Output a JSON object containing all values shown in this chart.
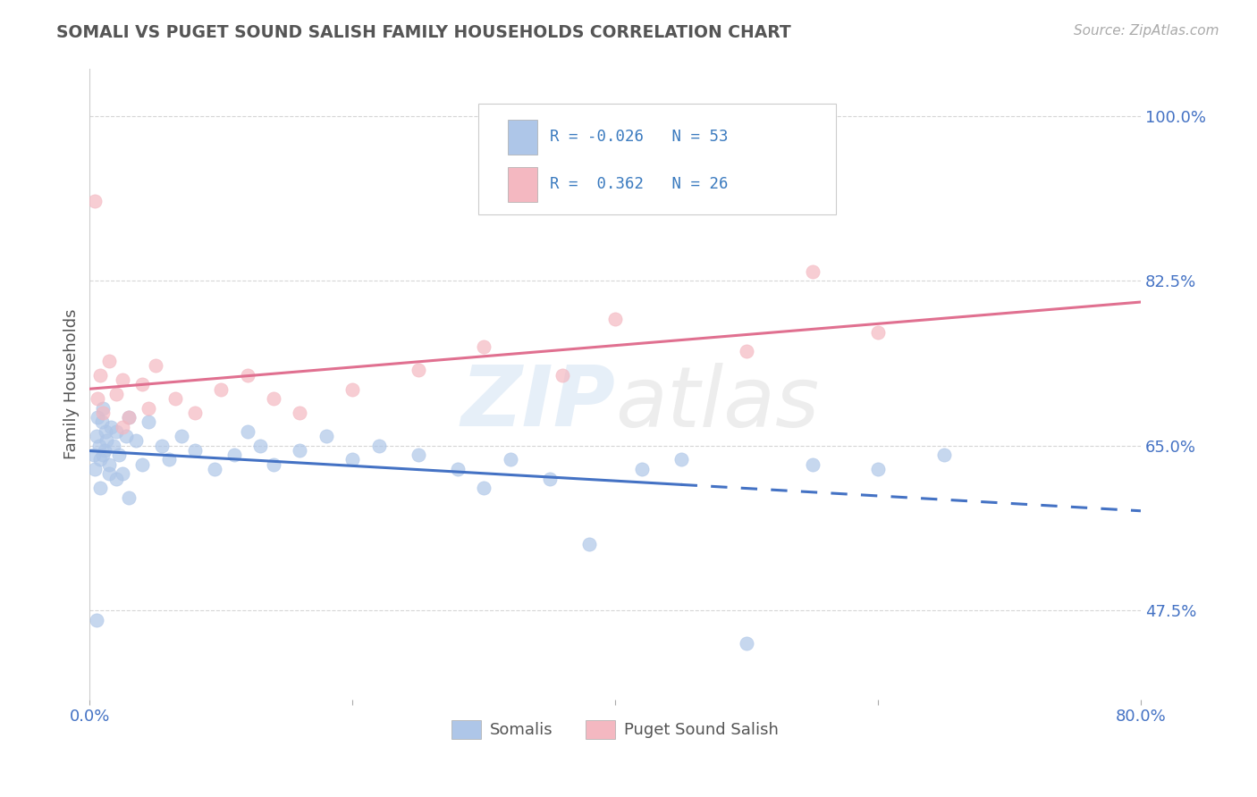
{
  "title": "SOMALI VS PUGET SOUND SALISH FAMILY HOUSEHOLDS CORRELATION CHART",
  "source_text": "Source: ZipAtlas.com",
  "ylabel": "Family Households",
  "xlim": [
    0.0,
    80.0
  ],
  "ylim": [
    38.0,
    105.0
  ],
  "yticks": [
    47.5,
    65.0,
    82.5,
    100.0
  ],
  "ytick_labels": [
    "47.5%",
    "65.0%",
    "82.5%",
    "100.0%"
  ],
  "xticks": [
    0.0,
    20.0,
    40.0,
    60.0,
    80.0
  ],
  "xtick_labels": [
    "0.0%",
    "",
    "",
    "",
    "80.0%"
  ],
  "legend_bottom": [
    "Somalis",
    "Puget Sound Salish"
  ],
  "watermark": "ZIPatlas",
  "background_color": "#ffffff",
  "grid_color": "#cccccc",
  "title_color": "#555555",
  "axis_label_color": "#555555",
  "tick_color": "#4472c4",
  "somali_color": "#aec6e8",
  "salish_color": "#f4b8c1",
  "blue_line_color": "#4472c4",
  "pink_line_color": "#e07090",
  "legend_r1": "R = -0.026   N = 53",
  "legend_r2": "R =  0.362   N = 26",
  "somali_x": [
    0.3,
    0.4,
    0.5,
    0.6,
    0.7,
    0.8,
    0.9,
    1.0,
    1.1,
    1.2,
    1.3,
    1.5,
    1.6,
    1.8,
    2.0,
    2.2,
    2.5,
    2.8,
    3.0,
    3.5,
    4.0,
    4.5,
    5.5,
    6.0,
    7.0,
    8.0,
    9.5,
    11.0,
    12.0,
    13.0,
    14.0,
    16.0,
    18.0,
    20.0,
    22.0,
    25.0,
    28.0,
    30.0,
    32.0,
    35.0,
    38.0,
    42.0,
    45.0,
    50.0,
    55.0,
    60.0,
    65.0,
    3.0,
    2.0,
    1.5,
    1.0,
    0.8,
    0.5
  ],
  "somali_y": [
    64.0,
    62.5,
    66.0,
    68.0,
    65.0,
    63.5,
    67.5,
    69.0,
    64.5,
    66.5,
    65.5,
    63.0,
    67.0,
    65.0,
    66.5,
    64.0,
    62.0,
    66.0,
    68.0,
    65.5,
    63.0,
    67.5,
    65.0,
    63.5,
    66.0,
    64.5,
    62.5,
    64.0,
    66.5,
    65.0,
    63.0,
    64.5,
    66.0,
    63.5,
    65.0,
    64.0,
    62.5,
    60.5,
    63.5,
    61.5,
    54.5,
    62.5,
    63.5,
    44.0,
    63.0,
    62.5,
    64.0,
    59.5,
    61.5,
    62.0,
    64.0,
    60.5,
    46.5
  ],
  "salish_x": [
    0.4,
    0.6,
    0.8,
    1.0,
    1.5,
    2.0,
    2.5,
    3.0,
    4.0,
    5.0,
    6.5,
    8.0,
    10.0,
    12.0,
    14.0,
    16.0,
    20.0,
    25.0,
    30.0,
    36.0,
    40.0,
    50.0,
    55.0,
    60.0,
    2.5,
    4.5
  ],
  "salish_y": [
    91.0,
    70.0,
    72.5,
    68.5,
    74.0,
    70.5,
    72.0,
    68.0,
    71.5,
    73.5,
    70.0,
    68.5,
    71.0,
    72.5,
    70.0,
    68.5,
    71.0,
    73.0,
    75.5,
    72.5,
    78.5,
    75.0,
    83.5,
    77.0,
    67.0,
    69.0
  ]
}
